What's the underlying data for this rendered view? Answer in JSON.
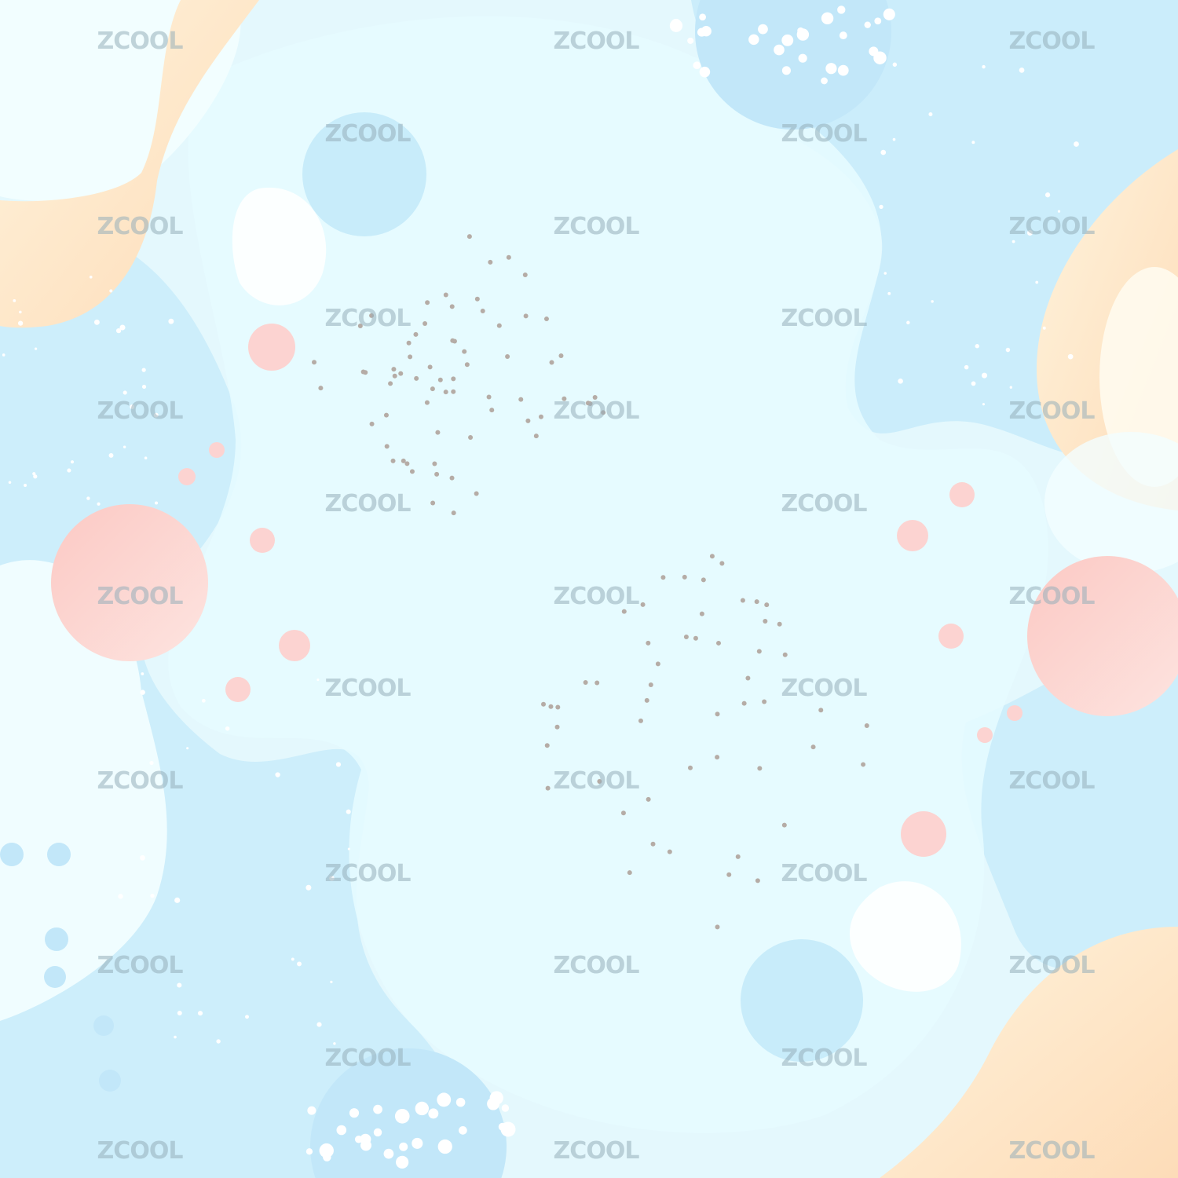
{
  "watermark": {
    "text": "ZCOOL"
  },
  "palette": {
    "background": "#e4f8fd",
    "blue_blob": "#c9ecfa",
    "light_blob": "#eefcff",
    "peach": "#fde3c4",
    "pink": "#fcd3d1",
    "white": "#ffffff",
    "grey_dots": "#b5aca6"
  }
}
